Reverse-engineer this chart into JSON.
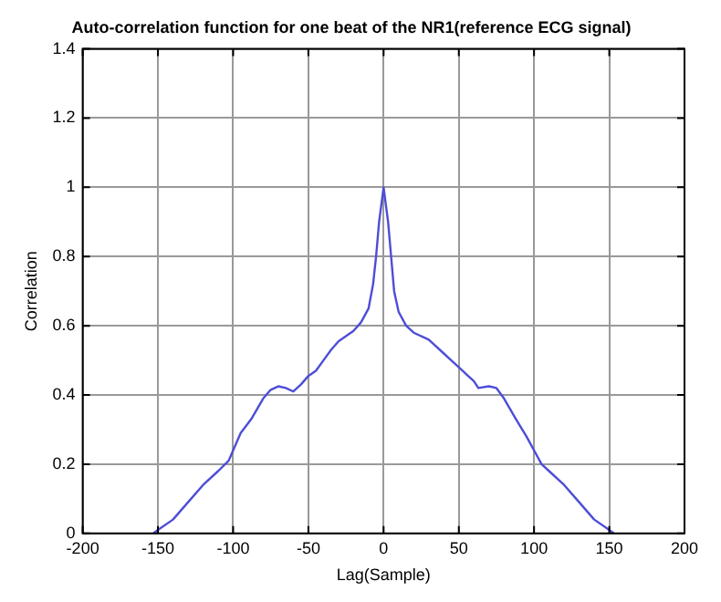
{
  "chart_data": {
    "type": "line",
    "title": "Auto-correlation function for one beat of the NR1(reference ECG signal)",
    "xlabel": "Lag(Sample)",
    "ylabel": "Correlation",
    "xlim": [
      -200,
      200
    ],
    "xticks": [
      -200,
      -150,
      -100,
      -50,
      0,
      50,
      100,
      150,
      200
    ],
    "ylim": [
      0,
      1.4
    ],
    "yticks": [
      0,
      0.2,
      0.4,
      0.6,
      0.8,
      1,
      1.2,
      1.4
    ],
    "grid": true,
    "legend": false,
    "marker": "none",
    "line_style": "solid",
    "series": [
      {
        "color": "#4d4dd8",
        "x": [
          -153,
          -150,
          -140,
          -130,
          -120,
          -110,
          -103,
          -100,
          -95,
          -88,
          -80,
          -75,
          -70,
          -65,
          -60,
          -55,
          -50,
          -45,
          -40,
          -35,
          -30,
          -25,
          -20,
          -15,
          -10,
          -7,
          -5,
          -3,
          0,
          3,
          5,
          7,
          10,
          15,
          20,
          30,
          40,
          45,
          50,
          55,
          60,
          63,
          70,
          75,
          80,
          88,
          95,
          100,
          105,
          110,
          120,
          130,
          140,
          150,
          153
        ],
        "values": [
          0,
          0.01,
          0.04,
          0.09,
          0.14,
          0.18,
          0.21,
          0.24,
          0.29,
          0.33,
          0.39,
          0.415,
          0.425,
          0.42,
          0.41,
          0.43,
          0.455,
          0.47,
          0.5,
          0.53,
          0.555,
          0.57,
          0.585,
          0.61,
          0.65,
          0.72,
          0.8,
          0.9,
          1,
          0.9,
          0.8,
          0.7,
          0.64,
          0.6,
          0.58,
          0.56,
          0.52,
          0.5,
          0.48,
          0.46,
          0.44,
          0.42,
          0.425,
          0.42,
          0.39,
          0.33,
          0.28,
          0.24,
          0.2,
          0.18,
          0.14,
          0.09,
          0.04,
          0.01,
          0
        ]
      }
    ]
  }
}
